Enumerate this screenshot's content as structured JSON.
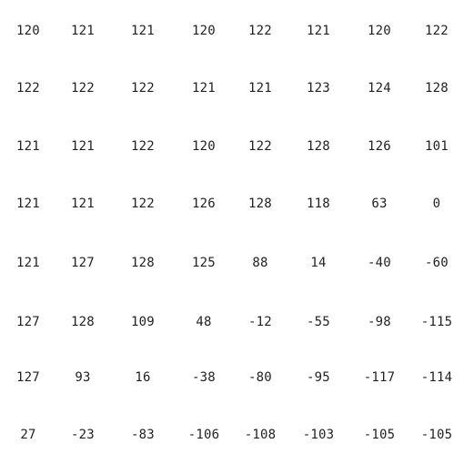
{
  "matrix": {
    "rows": [
      [
        "120",
        "121",
        "121",
        "120",
        "122",
        "121",
        "120",
        "122"
      ],
      [
        "122",
        "122",
        "122",
        "121",
        "121",
        "123",
        "124",
        "128"
      ],
      [
        "121",
        "121",
        "122",
        "120",
        "122",
        "128",
        "126",
        "101"
      ],
      [
        "121",
        "121",
        "122",
        "126",
        "128",
        "118",
        "63",
        "0"
      ],
      [
        "121",
        "127",
        "128",
        "125",
        "88",
        "14",
        "-40",
        "-60"
      ],
      [
        "127",
        "128",
        "109",
        "48",
        "-12",
        "-55",
        "-98",
        "-115"
      ],
      [
        "127",
        "93",
        "16",
        "-38",
        "-80",
        "-95",
        "-117",
        "-114"
      ],
      [
        "27",
        "-23",
        "-83",
        "-106",
        "-108",
        "-103",
        "-105",
        "-105"
      ]
    ]
  }
}
